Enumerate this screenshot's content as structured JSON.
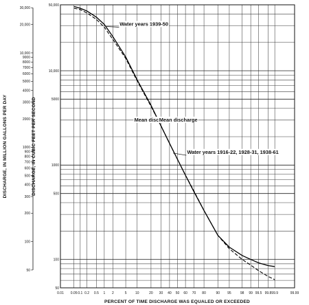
{
  "chart_data": {
    "type": "line",
    "xscale": "probability",
    "yscale": "log",
    "xlabel": "PERCENT OF TIME DISCHARGE WAS EQUALED OR EXCEEDED",
    "ylabel_cfs": "DISCHARGE, IN CUBIC FEET PER SECOND",
    "ylabel_mgd": "DISCHARGE, IN MILLION GALLONS PER DAY",
    "x_ticks": [
      "0.01",
      "0.05",
      "0.1",
      "0.2",
      "0.5",
      "1",
      "2",
      "5",
      "10",
      "20",
      "30",
      "40",
      "50",
      "60",
      "70",
      "80",
      "90",
      "95",
      "98",
      "99",
      "99.5",
      "99.8",
      "99.9",
      "99.99"
    ],
    "cfs_ticks": [
      "50",
      "100",
      "500",
      "1000",
      "5000",
      "10,000",
      "50,000"
    ],
    "mgd_ticks": [
      "50",
      "100",
      "200",
      "300",
      "400",
      "500",
      "600",
      "700",
      "800",
      "900",
      "1000",
      "2000",
      "3000",
      "4000",
      "5000",
      "6000",
      "7000",
      "8000",
      "9000",
      "10,000",
      "20,000",
      "30,000"
    ],
    "ylim_cfs": [
      50,
      50000
    ],
    "series": [
      {
        "name": "Water years 1939-50",
        "style": "solid",
        "x": [
          0.05,
          0.1,
          0.2,
          0.5,
          1,
          2,
          5,
          10,
          20,
          30,
          40,
          50,
          60,
          70,
          80,
          90,
          95,
          98,
          99,
          99.5,
          99.8,
          99.9
        ],
        "y": [
          48000,
          46000,
          43000,
          37000,
          31000,
          23000,
          14000,
          8000,
          4300,
          2600,
          1700,
          1150,
          780,
          520,
          330,
          180,
          135,
          110,
          100,
          92,
          86,
          84
        ]
      },
      {
        "name": "Water years 1916-22, 1928-31, 1938-61",
        "style": "dashed",
        "x": [
          0.05,
          0.1,
          0.2,
          0.5,
          1,
          2,
          5,
          10,
          20,
          30,
          40,
          50,
          60,
          70,
          80,
          90,
          95,
          98,
          99,
          99.5,
          99.8,
          99.9
        ],
        "y": [
          46000,
          44500,
          41000,
          35000,
          29000,
          21500,
          13500,
          7800,
          4200,
          2600,
          1700,
          1150,
          780,
          530,
          330,
          180,
          130,
          100,
          87,
          76,
          66,
          61
        ]
      }
    ],
    "annotations": [
      {
        "text": "Water years 1939-50",
        "series": 0
      },
      {
        "text": "Mean discharge",
        "series": 0
      },
      {
        "text": "Mean discharge",
        "series": 1
      },
      {
        "text": "Water years 1916-22, 1928-31, 1938-61",
        "series": 1
      }
    ],
    "grid": true,
    "legend": "none"
  }
}
